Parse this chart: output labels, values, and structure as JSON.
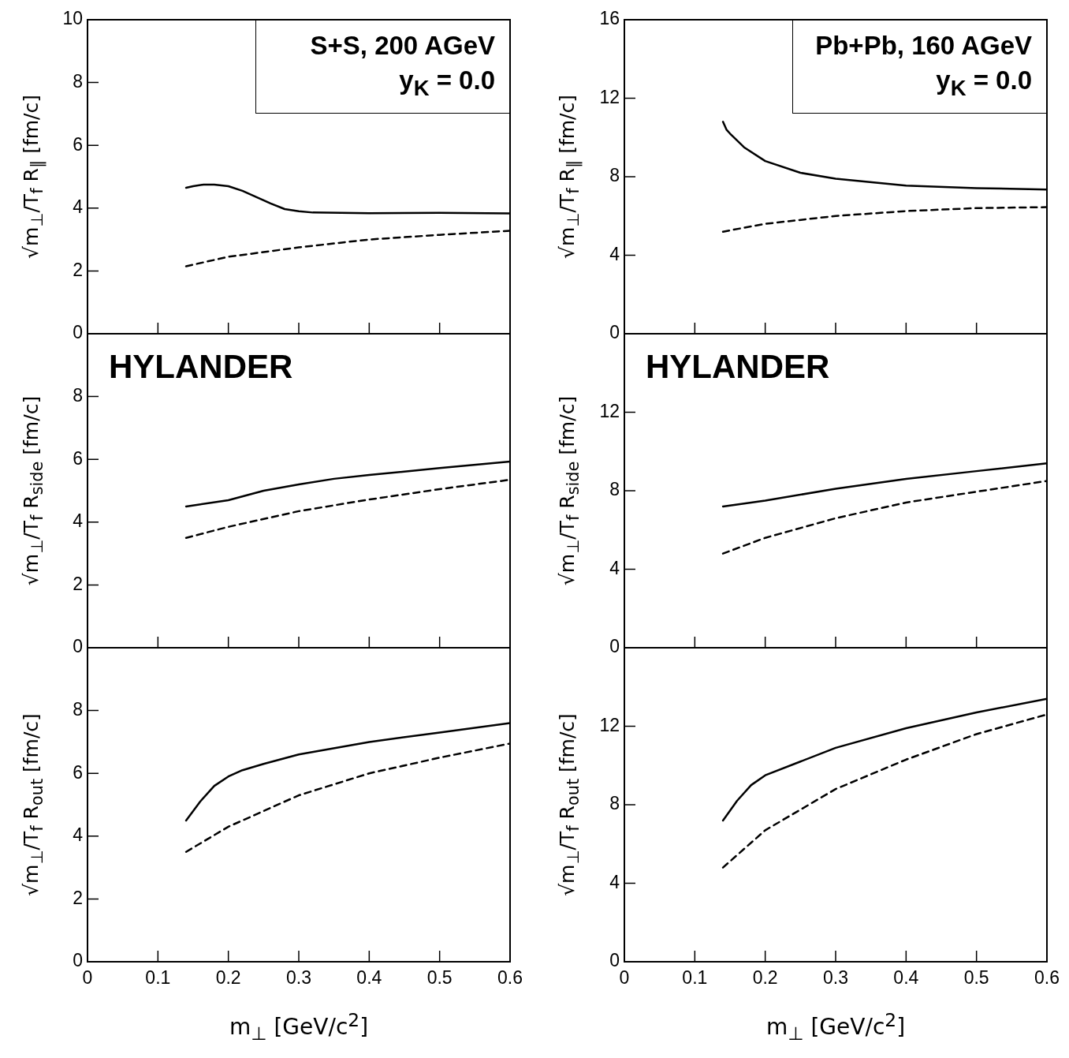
{
  "chart_data": [
    {
      "type": "line",
      "ylabel": "√m$_{⊥}$/T$_{f}$  R$_{∥}$ [fm/c]",
      "annotations": [
        "S+S, 200 AGeV",
        "y$_{K}$ = 0.0"
      ],
      "xlim": [
        0,
        0.6
      ],
      "xticks": [
        0,
        0.1,
        0.2,
        0.3,
        0.4,
        0.5,
        0.6
      ],
      "ylim": [
        0,
        10
      ],
      "yticks": [
        0,
        2,
        4,
        6,
        8,
        10
      ],
      "tick_labels": "y",
      "grid": false,
      "legend": false,
      "marker": "none",
      "series": [
        {
          "color": "#000000",
          "line_style": "solid",
          "x": [
            0.14,
            0.15,
            0.165,
            0.18,
            0.2,
            0.22,
            0.24,
            0.26,
            0.28,
            0.3,
            0.32,
            0.4,
            0.5,
            0.6
          ],
          "values": [
            4.65,
            4.7,
            4.75,
            4.75,
            4.7,
            4.55,
            4.35,
            4.15,
            3.97,
            3.9,
            3.86,
            3.84,
            3.85,
            3.83
          ]
        },
        {
          "color": "#000000",
          "line_style": "dashed",
          "x": [
            0.14,
            0.2,
            0.3,
            0.4,
            0.5,
            0.6
          ],
          "values": [
            2.15,
            2.45,
            2.75,
            3.0,
            3.15,
            3.28
          ]
        }
      ]
    },
    {
      "type": "line",
      "ylabel": "√m$_{⊥}$/T$_{f}$  R$_{∥}$ [fm/c]",
      "annotations": [
        "Pb+Pb, 160 AGeV",
        "y$_{K}$ = 0.0"
      ],
      "xlim": [
        0,
        0.6
      ],
      "xticks": [
        0,
        0.1,
        0.2,
        0.3,
        0.4,
        0.5,
        0.6
      ],
      "ylim": [
        0,
        16
      ],
      "yticks": [
        0,
        4,
        8,
        12,
        16
      ],
      "tick_labels": "y",
      "grid": false,
      "legend": false,
      "marker": "none",
      "series": [
        {
          "color": "#000000",
          "line_style": "solid",
          "x": [
            0.14,
            0.145,
            0.15,
            0.17,
            0.2,
            0.25,
            0.3,
            0.4,
            0.5,
            0.6
          ],
          "values": [
            10.8,
            10.4,
            10.2,
            9.5,
            8.8,
            8.2,
            7.9,
            7.55,
            7.42,
            7.35
          ]
        },
        {
          "color": "#000000",
          "line_style": "dashed",
          "x": [
            0.14,
            0.2,
            0.3,
            0.4,
            0.5,
            0.6
          ],
          "values": [
            5.2,
            5.6,
            6.0,
            6.25,
            6.4,
            6.45
          ]
        }
      ]
    },
    {
      "type": "line",
      "ylabel": "√m$_{⊥}$/T$_{f}$  R$_{side}$ [fm/c]",
      "annotations": [
        "HYLANDER"
      ],
      "xlim": [
        0,
        0.6
      ],
      "xticks": [
        0,
        0.1,
        0.2,
        0.3,
        0.4,
        0.5,
        0.6
      ],
      "ylim": [
        0,
        10
      ],
      "yticks": [
        0,
        2,
        4,
        6,
        8
      ],
      "tick_labels": "y",
      "grid": false,
      "legend": false,
      "marker": "none",
      "series": [
        {
          "color": "#000000",
          "line_style": "solid",
          "x": [
            0.14,
            0.2,
            0.25,
            0.3,
            0.35,
            0.4,
            0.5,
            0.6
          ],
          "values": [
            4.5,
            4.7,
            5.0,
            5.2,
            5.38,
            5.5,
            5.72,
            5.93
          ]
        },
        {
          "color": "#000000",
          "line_style": "dashed",
          "x": [
            0.14,
            0.2,
            0.3,
            0.4,
            0.5,
            0.6
          ],
          "values": [
            3.5,
            3.85,
            4.35,
            4.72,
            5.05,
            5.35
          ]
        }
      ]
    },
    {
      "type": "line",
      "ylabel": "√m$_{⊥}$/T$_{f}$  R$_{side}$ [fm/c]",
      "annotations": [
        "HYLANDER"
      ],
      "xlim": [
        0,
        0.6
      ],
      "xticks": [
        0,
        0.1,
        0.2,
        0.3,
        0.4,
        0.5,
        0.6
      ],
      "ylim": [
        0,
        16
      ],
      "yticks": [
        0,
        4,
        8,
        12
      ],
      "tick_labels": "y",
      "grid": false,
      "legend": false,
      "marker": "none",
      "series": [
        {
          "color": "#000000",
          "line_style": "solid",
          "x": [
            0.14,
            0.2,
            0.3,
            0.4,
            0.5,
            0.6
          ],
          "values": [
            7.2,
            7.5,
            8.1,
            8.6,
            9.0,
            9.4
          ]
        },
        {
          "color": "#000000",
          "line_style": "dashed",
          "x": [
            0.14,
            0.2,
            0.3,
            0.4,
            0.5,
            0.6
          ],
          "values": [
            4.8,
            5.6,
            6.6,
            7.4,
            7.95,
            8.5
          ]
        }
      ]
    },
    {
      "type": "line",
      "xlabel": "m$_{⊥}$ [GeV/c$^{2}$]",
      "ylabel": "√m$_{⊥}$/T$_{f}$  R$_{out}$ [fm/c]",
      "xlim": [
        0,
        0.6
      ],
      "xticks": [
        0,
        0.1,
        0.2,
        0.3,
        0.4,
        0.5,
        0.6
      ],
      "ylim": [
        0,
        10
      ],
      "yticks": [
        0,
        2,
        4,
        6,
        8
      ],
      "grid": false,
      "legend": false,
      "marker": "none",
      "series": [
        {
          "color": "#000000",
          "line_style": "solid",
          "x": [
            0.14,
            0.16,
            0.18,
            0.2,
            0.22,
            0.25,
            0.3,
            0.4,
            0.5,
            0.6
          ],
          "values": [
            4.5,
            5.1,
            5.6,
            5.9,
            6.1,
            6.3,
            6.6,
            7.0,
            7.3,
            7.6
          ]
        },
        {
          "color": "#000000",
          "line_style": "dashed",
          "x": [
            0.14,
            0.2,
            0.3,
            0.4,
            0.5,
            0.6
          ],
          "values": [
            3.5,
            4.3,
            5.3,
            6.0,
            6.5,
            6.95
          ]
        }
      ]
    },
    {
      "type": "line",
      "xlabel": "m$_{⊥}$ [GeV/c$^{2}$]",
      "ylabel": "√m$_{⊥}$/T$_{f}$  R$_{out}$ [fm/c]",
      "xlim": [
        0,
        0.6
      ],
      "xticks": [
        0,
        0.1,
        0.2,
        0.3,
        0.4,
        0.5,
        0.6
      ],
      "ylim": [
        0,
        16
      ],
      "yticks": [
        0,
        4,
        8,
        12
      ],
      "grid": false,
      "legend": false,
      "marker": "none",
      "series": [
        {
          "color": "#000000",
          "line_style": "solid",
          "x": [
            0.14,
            0.16,
            0.18,
            0.2,
            0.25,
            0.3,
            0.4,
            0.5,
            0.6
          ],
          "values": [
            7.2,
            8.2,
            9.0,
            9.5,
            10.2,
            10.9,
            11.9,
            12.7,
            13.4
          ]
        },
        {
          "color": "#000000",
          "line_style": "dashed",
          "x": [
            0.14,
            0.2,
            0.3,
            0.4,
            0.5,
            0.6
          ],
          "values": [
            4.8,
            6.7,
            8.8,
            10.3,
            11.6,
            12.6
          ]
        }
      ]
    }
  ]
}
